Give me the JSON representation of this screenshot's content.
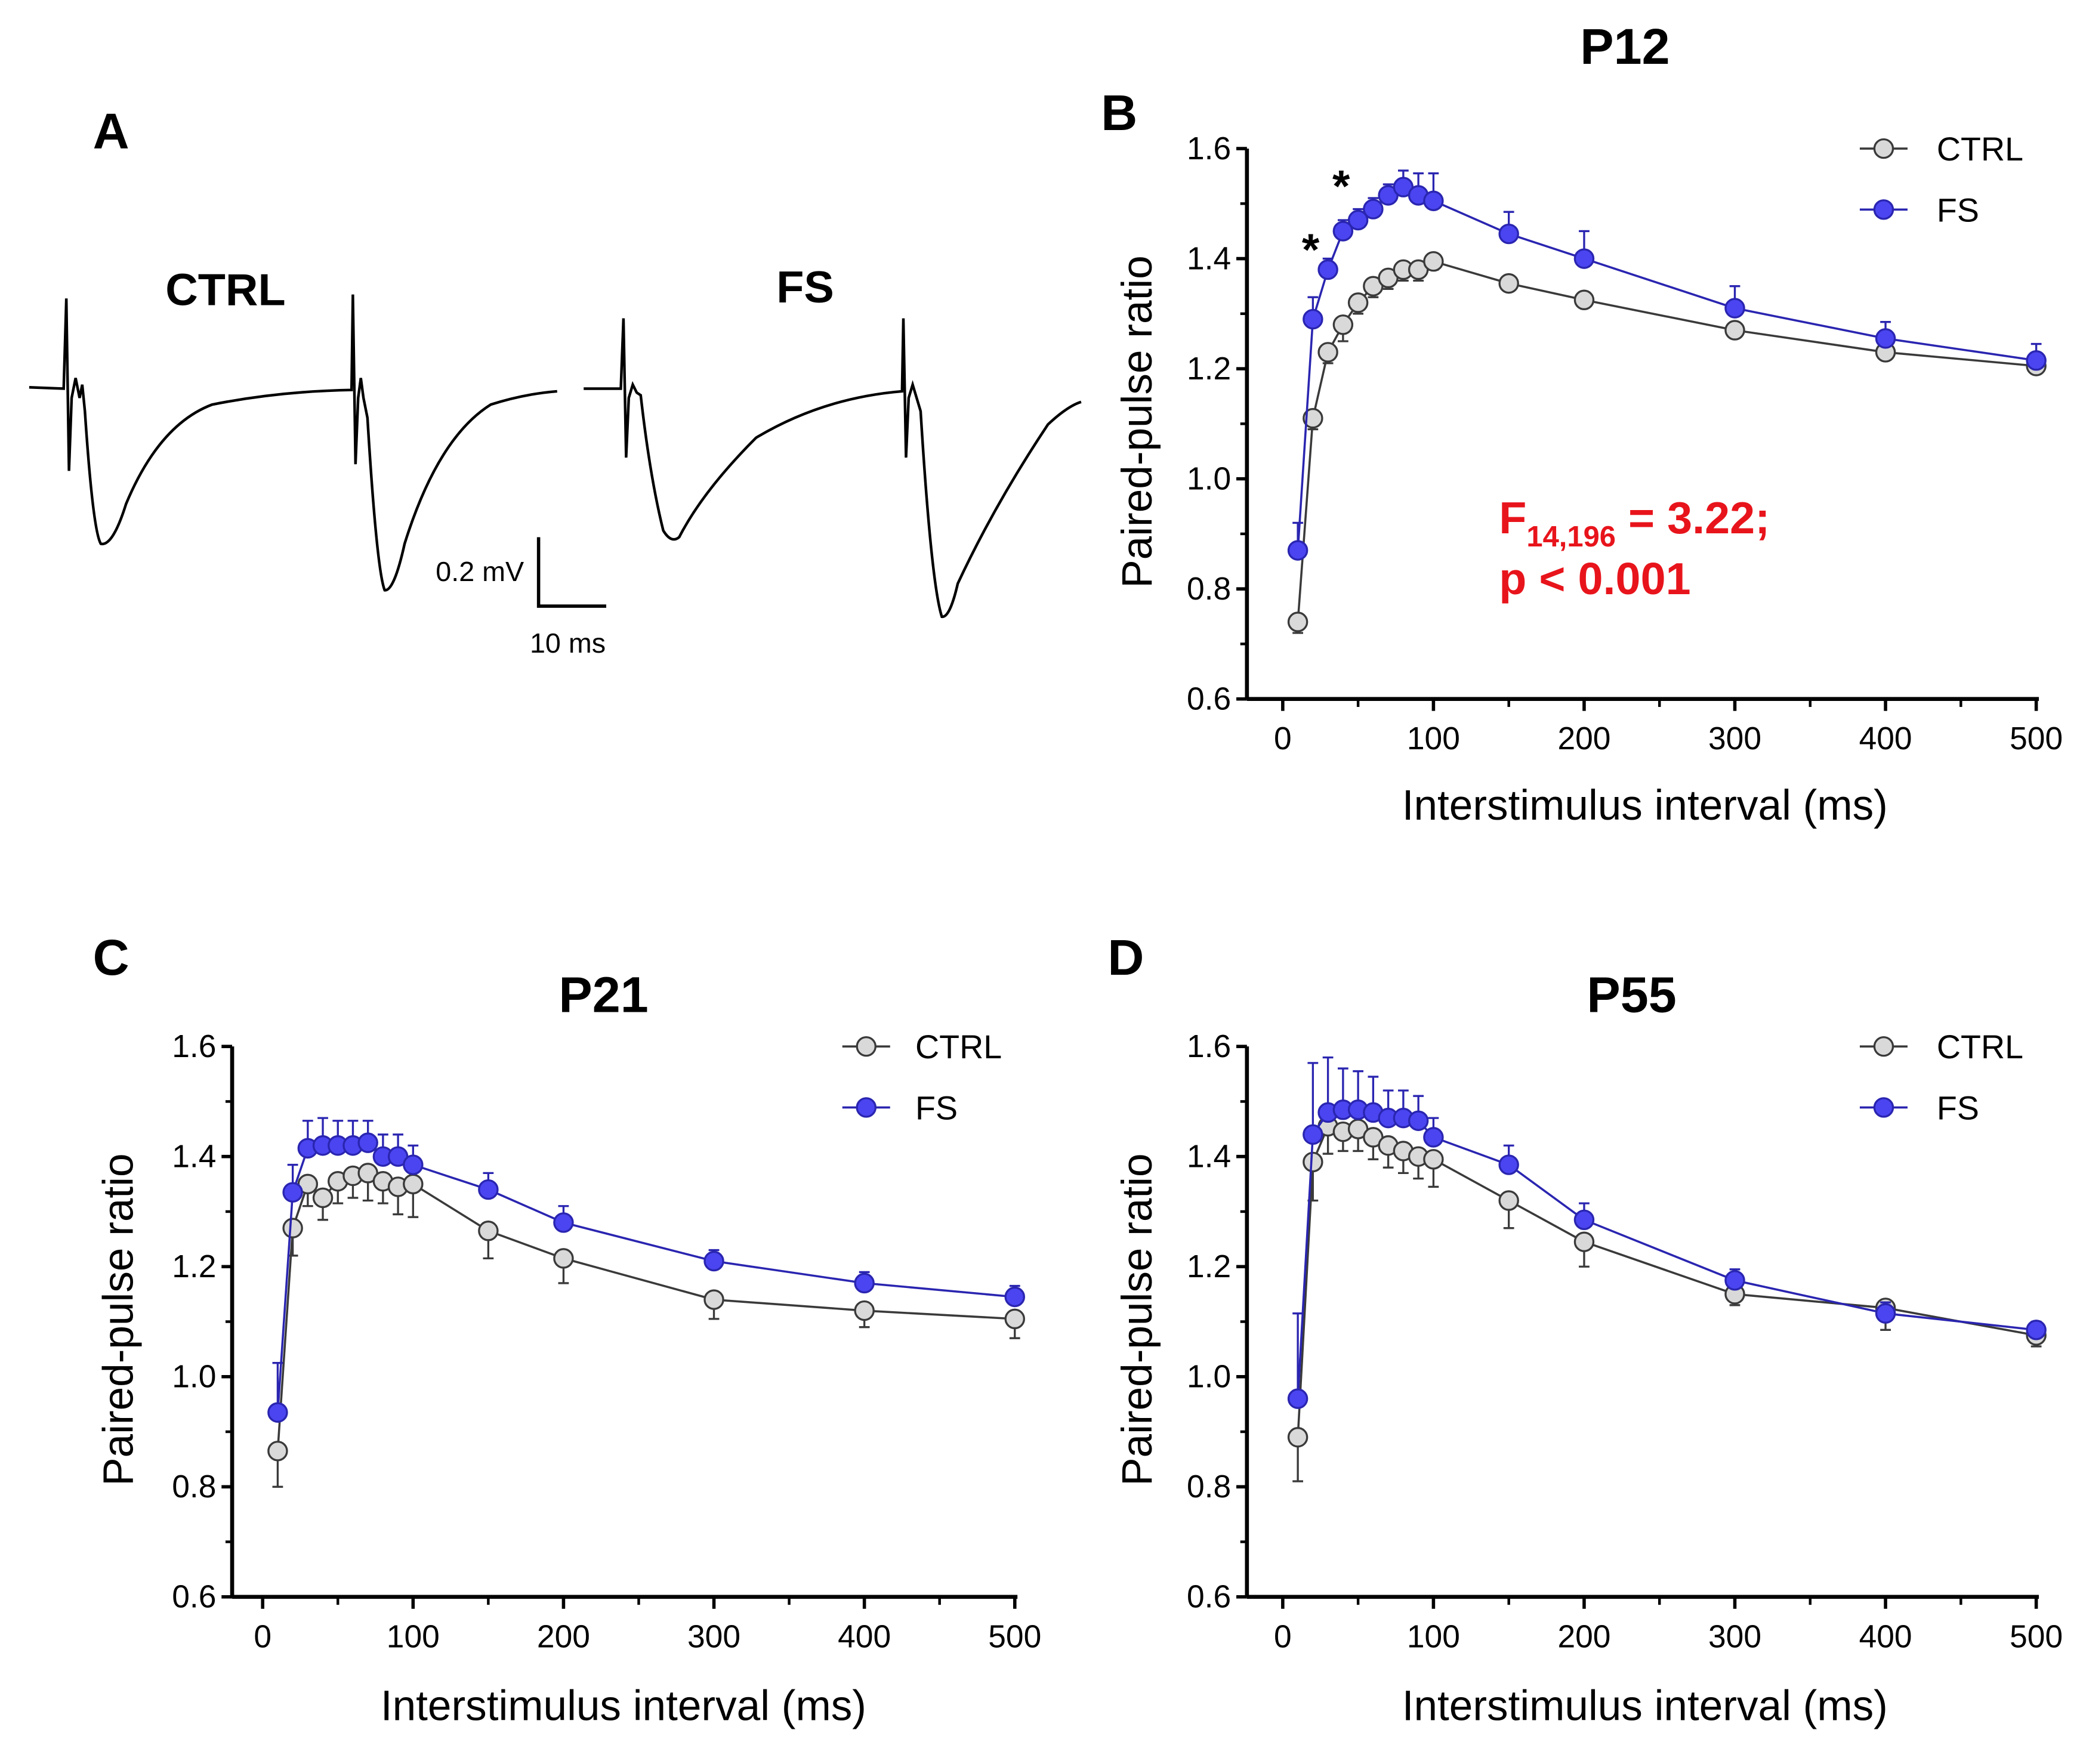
{
  "panel_a": {
    "letter": "A",
    "ctrl_label": "CTRL",
    "fs_label": "FS",
    "scale_voltage": "0.2 mV",
    "scale_time": "10 ms"
  },
  "colors": {
    "ctrl": "#d9d9d9",
    "ctrl_line": "#3a3a3a",
    "fs": "#4a45f0",
    "fs_line": "#2a25b0",
    "stat": "#e8141b"
  },
  "chart_data": [
    {
      "id": "B",
      "letter": "B",
      "type": "line",
      "title": "P12",
      "xlabel": "Interstimulus interval (ms)",
      "ylabel": "Paired-pulse ratio",
      "xlim": [
        0,
        500
      ],
      "ylim": [
        0.6,
        1.6
      ],
      "xticks": [
        "0",
        "100",
        "200",
        "300",
        "400",
        "500"
      ],
      "yticks": [
        "0.6",
        "0.8",
        "1.0",
        "1.2",
        "1.4",
        "1.6"
      ],
      "legend": "top-right",
      "x": [
        10,
        20,
        30,
        40,
        50,
        60,
        70,
        80,
        90,
        100,
        150,
        200,
        300,
        400,
        500
      ],
      "series": [
        {
          "name": "CTRL",
          "values": [
            0.74,
            1.11,
            1.23,
            1.28,
            1.32,
            1.35,
            1.365,
            1.38,
            1.38,
            1.395,
            1.355,
            1.325,
            1.27,
            1.23,
            1.205
          ],
          "errors": [
            0.02,
            0.02,
            0.02,
            0.03,
            0.02,
            0.02,
            0.02,
            0.02,
            0.02,
            0.015,
            0.01,
            0.01,
            0.01,
            0.01,
            0.01
          ]
        },
        {
          "name": "FS",
          "values": [
            0.87,
            1.29,
            1.38,
            1.45,
            1.47,
            1.49,
            1.515,
            1.53,
            1.515,
            1.505,
            1.445,
            1.4,
            1.31,
            1.255,
            1.215
          ],
          "errors": [
            0.05,
            0.04,
            0.02,
            0.02,
            0.02,
            0.02,
            0.02,
            0.03,
            0.04,
            0.05,
            0.04,
            0.05,
            0.04,
            0.03,
            0.03
          ]
        }
      ],
      "annotations": {
        "stars": [
          "*",
          "*"
        ],
        "stat_f": "F",
        "stat_sub": "14,196",
        "stat_val": " = 3.22;",
        "stat_p": "p < 0.001"
      }
    },
    {
      "id": "C",
      "letter": "C",
      "type": "line",
      "title": "P21",
      "xlabel": "Interstimulus interval (ms)",
      "ylabel": "Paired-pulse ratio",
      "xlim": [
        0,
        500
      ],
      "ylim": [
        0.6,
        1.6
      ],
      "xticks": [
        "0",
        "100",
        "200",
        "300",
        "400",
        "500"
      ],
      "yticks": [
        "0.6",
        "0.8",
        "1.0",
        "1.2",
        "1.4",
        "1.6"
      ],
      "legend": "top-right",
      "x": [
        10,
        20,
        30,
        40,
        50,
        60,
        70,
        80,
        90,
        100,
        150,
        200,
        300,
        400,
        500
      ],
      "series": [
        {
          "name": "CTRL",
          "values": [
            0.865,
            1.27,
            1.35,
            1.325,
            1.355,
            1.365,
            1.37,
            1.355,
            1.345,
            1.35,
            1.265,
            1.215,
            1.14,
            1.12,
            1.105
          ],
          "errors": [
            0.065,
            0.05,
            0.04,
            0.04,
            0.04,
            0.04,
            0.05,
            0.04,
            0.05,
            0.06,
            0.05,
            0.045,
            0.035,
            0.03,
            0.035
          ]
        },
        {
          "name": "FS",
          "values": [
            0.935,
            1.335,
            1.415,
            1.42,
            1.42,
            1.42,
            1.425,
            1.4,
            1.4,
            1.385,
            1.34,
            1.28,
            1.21,
            1.17,
            1.145
          ],
          "errors": [
            0.09,
            0.05,
            0.05,
            0.05,
            0.045,
            0.045,
            0.04,
            0.04,
            0.04,
            0.035,
            0.03,
            0.03,
            0.02,
            0.02,
            0.02
          ]
        }
      ]
    },
    {
      "id": "D",
      "letter": "D",
      "type": "line",
      "title": "P55",
      "xlabel": "Interstimulus interval (ms)",
      "ylabel": "Paired-pulse ratio",
      "xlim": [
        0,
        500
      ],
      "ylim": [
        0.6,
        1.6
      ],
      "xticks": [
        "0",
        "100",
        "200",
        "300",
        "400",
        "500"
      ],
      "yticks": [
        "0.6",
        "0.8",
        "1.0",
        "1.2",
        "1.4",
        "1.6"
      ],
      "legend": "top-right",
      "x": [
        10,
        20,
        30,
        40,
        50,
        60,
        70,
        80,
        90,
        100,
        150,
        200,
        300,
        400,
        500
      ],
      "series": [
        {
          "name": "CTRL",
          "values": [
            0.89,
            1.39,
            1.455,
            1.445,
            1.45,
            1.435,
            1.42,
            1.41,
            1.4,
            1.395,
            1.32,
            1.245,
            1.15,
            1.125,
            1.075
          ],
          "errors": [
            0.08,
            0.07,
            0.05,
            0.035,
            0.04,
            0.04,
            0.04,
            0.04,
            0.04,
            0.05,
            0.05,
            0.045,
            0.02,
            0.04,
            0.02
          ]
        },
        {
          "name": "FS",
          "values": [
            0.96,
            1.44,
            1.48,
            1.485,
            1.485,
            1.48,
            1.47,
            1.47,
            1.465,
            1.435,
            1.385,
            1.285,
            1.175,
            1.115,
            1.085
          ],
          "errors": [
            0.155,
            0.13,
            0.1,
            0.075,
            0.07,
            0.065,
            0.05,
            0.05,
            0.045,
            0.035,
            0.035,
            0.03,
            0.02,
            0.02,
            0.015
          ]
        }
      ]
    }
  ]
}
